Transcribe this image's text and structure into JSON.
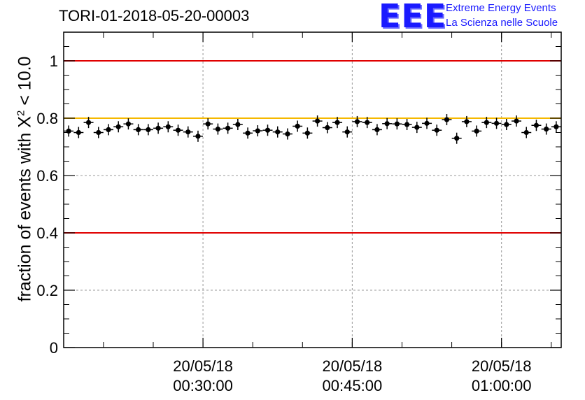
{
  "chart_data": {
    "type": "scatter",
    "title": "TORI-01-2018-05-20-00003",
    "ylabel_prefix": "fraction of events with ",
    "ylabel_symbol": "X",
    "ylabel_exponent": "2",
    "ylabel_suffix": " < 10.0",
    "ylim": [
      0,
      1.1
    ],
    "yticks": [
      0,
      0.2,
      0.4,
      0.6,
      0.8,
      1
    ],
    "ytick_labels": [
      "0",
      "0.2",
      "0.4",
      "0.6",
      "0.8",
      "1"
    ],
    "x_unit": "minutes after 00:00:00",
    "xlim": [
      16,
      66
    ],
    "xticks": [
      {
        "value": 30,
        "date": "20/05/18",
        "time": "00:30:00"
      },
      {
        "value": 45,
        "date": "20/05/18",
        "time": "00:45:00"
      },
      {
        "value": 60,
        "date": "20/05/18",
        "time": "01:00:00"
      }
    ],
    "grid": true,
    "reference_lines": [
      {
        "y": 1.0,
        "color": "#e00000"
      },
      {
        "y": 0.8,
        "color": "#f5b800"
      },
      {
        "y": 0.4,
        "color": "#e00000"
      }
    ],
    "series": [
      {
        "name": "fraction",
        "color": "#000000",
        "x": [
          16.5,
          17.5,
          18.5,
          19.5,
          20.5,
          21.5,
          22.5,
          23.5,
          24.5,
          25.5,
          26.5,
          27.5,
          28.5,
          29.5,
          30.5,
          31.5,
          32.5,
          33.5,
          34.5,
          35.5,
          36.5,
          37.5,
          38.5,
          39.5,
          40.5,
          41.5,
          42.5,
          43.5,
          44.5,
          45.5,
          46.5,
          47.5,
          48.5,
          49.5,
          50.5,
          51.5,
          52.5,
          53.5,
          54.5,
          55.5,
          56.5,
          57.5,
          58.5,
          59.5,
          60.5,
          61.5,
          62.5,
          63.5,
          64.5,
          65.5
        ],
        "y": [
          0.755,
          0.75,
          0.785,
          0.75,
          0.76,
          0.77,
          0.78,
          0.76,
          0.76,
          0.765,
          0.77,
          0.758,
          0.752,
          0.737,
          0.78,
          0.762,
          0.765,
          0.778,
          0.748,
          0.756,
          0.758,
          0.752,
          0.745,
          0.772,
          0.748,
          0.79,
          0.767,
          0.785,
          0.752,
          0.788,
          0.785,
          0.76,
          0.781,
          0.78,
          0.778,
          0.768,
          0.782,
          0.758,
          0.795,
          0.73,
          0.788,
          0.755,
          0.785,
          0.782,
          0.778,
          0.79,
          0.75,
          0.775,
          0.762,
          0.77
        ]
      }
    ]
  },
  "logo": {
    "mark": "EEE",
    "line1": "Extreme Energy Events",
    "line2": "La Scienza nelle Scuole"
  }
}
